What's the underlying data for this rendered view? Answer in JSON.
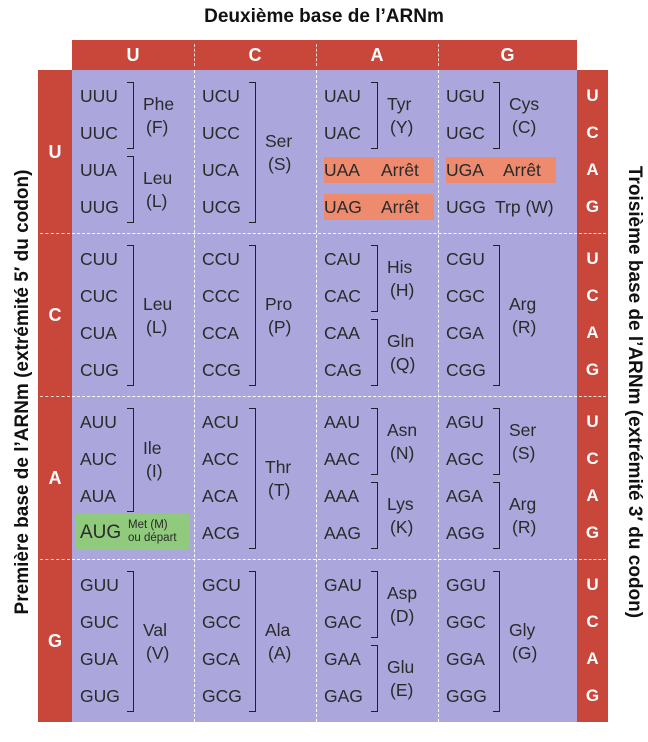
{
  "titles": {
    "top": "Deuxième base de l’ARNm",
    "left": "Première base de l’ARNm (extrémité 5′ du codon)",
    "right": "Troisième base de l’ARNm (extrémité 3′ du codon)"
  },
  "bases": [
    "U",
    "C",
    "A",
    "G"
  ],
  "colors": {
    "header": "#c9463a",
    "grid": "#aba7dc",
    "stop": "#ee8a6e",
    "start": "#8fca7d"
  },
  "blocks": [
    [
      {
        "codons": [
          "UUU",
          "UUC",
          "UUA",
          "UUG"
        ],
        "groups": [
          {
            "rows": [
              0,
              1
            ],
            "name": "Phe",
            "abbr": "(F)"
          },
          {
            "rows": [
              2,
              3
            ],
            "name": "Leu",
            "abbr": "(L)"
          }
        ]
      },
      {
        "codons": [
          "UCU",
          "UCC",
          "UCA",
          "UCG"
        ],
        "groups": [
          {
            "rows": [
              0,
              3
            ],
            "name": "Ser",
            "abbr": "(S)"
          }
        ]
      },
      {
        "codons": [
          "UAU",
          "UAC",
          "UAA",
          "UAG"
        ],
        "groups": [
          {
            "rows": [
              0,
              1
            ],
            "name": "Tyr",
            "abbr": "(Y)"
          },
          {
            "rows": [
              2
            ],
            "stop": "Arrêt"
          },
          {
            "rows": [
              3
            ],
            "stop": "Arrêt"
          }
        ]
      },
      {
        "codons": [
          "UGU",
          "UGC",
          "UGA",
          "UGG"
        ],
        "groups": [
          {
            "rows": [
              0,
              1
            ],
            "name": "Cys",
            "abbr": "(C)"
          },
          {
            "rows": [
              2
            ],
            "stop": "Arrêt"
          },
          {
            "rows": [
              3
            ],
            "inline": "Trp (W)"
          }
        ]
      }
    ],
    [
      {
        "codons": [
          "CUU",
          "CUC",
          "CUA",
          "CUG"
        ],
        "groups": [
          {
            "rows": [
              0,
              3
            ],
            "name": "Leu",
            "abbr": "(L)"
          }
        ]
      },
      {
        "codons": [
          "CCU",
          "CCC",
          "CCA",
          "CCG"
        ],
        "groups": [
          {
            "rows": [
              0,
              3
            ],
            "name": "Pro",
            "abbr": "(P)"
          }
        ]
      },
      {
        "codons": [
          "CAU",
          "CAC",
          "CAA",
          "CAG"
        ],
        "groups": [
          {
            "rows": [
              0,
              1
            ],
            "name": "His",
            "abbr": "(H)"
          },
          {
            "rows": [
              2,
              3
            ],
            "name": "Gln",
            "abbr": "(Q)"
          }
        ]
      },
      {
        "codons": [
          "CGU",
          "CGC",
          "CGA",
          "CGG"
        ],
        "groups": [
          {
            "rows": [
              0,
              3
            ],
            "name": "Arg",
            "abbr": "(R)"
          }
        ]
      }
    ],
    [
      {
        "codons": [
          "AUU",
          "AUC",
          "AUA",
          "AUG"
        ],
        "groups": [
          {
            "rows": [
              0,
              2
            ],
            "name": "Ile",
            "abbr": "(I)"
          },
          {
            "rows": [
              3
            ],
            "start": [
              "Met (M)",
              "ou départ"
            ]
          }
        ]
      },
      {
        "codons": [
          "ACU",
          "ACC",
          "ACA",
          "ACG"
        ],
        "groups": [
          {
            "rows": [
              0,
              3
            ],
            "name": "Thr",
            "abbr": "(T)"
          }
        ]
      },
      {
        "codons": [
          "AAU",
          "AAC",
          "AAA",
          "AAG"
        ],
        "groups": [
          {
            "rows": [
              0,
              1
            ],
            "name": "Asn",
            "abbr": "(N)"
          },
          {
            "rows": [
              2,
              3
            ],
            "name": "Lys",
            "abbr": "(K)"
          }
        ]
      },
      {
        "codons": [
          "AGU",
          "AGC",
          "AGA",
          "AGG"
        ],
        "groups": [
          {
            "rows": [
              0,
              1
            ],
            "name": "Ser",
            "abbr": "(S)"
          },
          {
            "rows": [
              2,
              3
            ],
            "name": "Arg",
            "abbr": "(R)"
          }
        ]
      }
    ],
    [
      {
        "codons": [
          "GUU",
          "GUC",
          "GUA",
          "GUG"
        ],
        "groups": [
          {
            "rows": [
              0,
              3
            ],
            "name": "Val",
            "abbr": "(V)"
          }
        ]
      },
      {
        "codons": [
          "GCU",
          "GCC",
          "GCA",
          "GCG"
        ],
        "groups": [
          {
            "rows": [
              0,
              3
            ],
            "name": "Ala",
            "abbr": "(A)"
          }
        ]
      },
      {
        "codons": [
          "GAU",
          "GAC",
          "GAA",
          "GAG"
        ],
        "groups": [
          {
            "rows": [
              0,
              1
            ],
            "name": "Asp",
            "abbr": "(D)"
          },
          {
            "rows": [
              2,
              3
            ],
            "name": "Glu",
            "abbr": "(E)"
          }
        ]
      },
      {
        "codons": [
          "GGU",
          "GGC",
          "GGA",
          "GGG"
        ],
        "groups": [
          {
            "rows": [
              0,
              3
            ],
            "name": "Gly",
            "abbr": "(G)"
          }
        ]
      }
    ]
  ]
}
